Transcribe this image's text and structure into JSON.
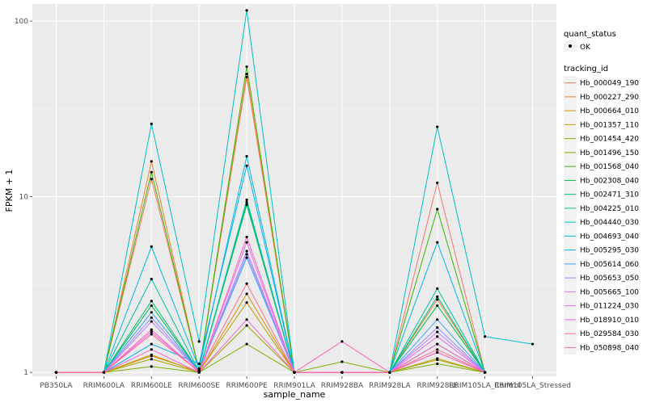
{
  "chart_data": {
    "type": "line",
    "title": "",
    "xlabel": "sample_name",
    "ylabel": "FPKM + 1",
    "y_scale": "log10",
    "ylim": [
      0.95,
      125
    ],
    "y_ticks": [
      1,
      10,
      100
    ],
    "y_tick_labels": [
      "1",
      "10",
      "100"
    ],
    "categories": [
      "PB350LA",
      "RRIM600LA",
      "RRIM600LE",
      "RRIM600SE",
      "RRIM600PE",
      "RRIM901LA",
      "RRIM928BA",
      "RRIM928LA",
      "RRIM928LE",
      "RRIM105LA_Control",
      "RRIM105LA_Stressed"
    ],
    "grid": true,
    "legend_position": "right",
    "legend_points": {
      "title": "quant_status",
      "entries": [
        "OK"
      ]
    },
    "legend_lines_title": "tracking_id",
    "series": [
      {
        "name": "Hb_000049_190",
        "color": "#F8766D",
        "values": [
          1,
          1,
          12.6,
          1.03,
          48,
          1.0,
          1.0,
          1.0,
          12.0,
          1.0,
          null
        ]
      },
      {
        "name": "Hb_000227_290",
        "color": "#EA8331",
        "values": [
          1,
          1,
          15.9,
          1.02,
          50,
          1.0,
          1.0,
          1.0,
          2.6,
          1.0,
          null
        ]
      },
      {
        "name": "Hb_000664_010",
        "color": "#D89000",
        "values": [
          1,
          1,
          1.26,
          1.0,
          2.8,
          1.0,
          1.0,
          1.0,
          1.3,
          1.0,
          null
        ]
      },
      {
        "name": "Hb_001357_110",
        "color": "#C09B00",
        "values": [
          1,
          1,
          1.24,
          1.01,
          2.5,
          1.0,
          1.0,
          1.0,
          1.2,
          1.0,
          null
        ]
      },
      {
        "name": "Hb_001454_420",
        "color": "#A3A500",
        "values": [
          1,
          1,
          1.19,
          1.0,
          1.85,
          1.0,
          1.0,
          1.0,
          1.18,
          1.0,
          null
        ]
      },
      {
        "name": "Hb_001496_150",
        "color": "#7CAE00",
        "values": [
          1,
          1,
          1.08,
          1.0,
          1.45,
          1.0,
          1.15,
          1.0,
          1.12,
          1.0,
          null
        ]
      },
      {
        "name": "Hb_001568_040",
        "color": "#39B600",
        "values": [
          1,
          1,
          13.8,
          1.02,
          55,
          1.0,
          1.0,
          1.0,
          8.5,
          1.0,
          null
        ]
      },
      {
        "name": "Hb_002308_040",
        "color": "#00BB4E",
        "values": [
          1,
          1,
          2.4,
          1.01,
          9.0,
          1.0,
          1.0,
          1.0,
          2.4,
          1.0,
          null
        ]
      },
      {
        "name": "Hb_002471_310",
        "color": "#00BF7D",
        "values": [
          1,
          1,
          2.55,
          1.01,
          9.3,
          1.0,
          1.0,
          1.0,
          2.7,
          1.0,
          null
        ]
      },
      {
        "name": "Hb_004225_010",
        "color": "#00C1A3",
        "values": [
          1,
          1,
          3.4,
          1.01,
          9.6,
          1.0,
          1.0,
          1.0,
          3.0,
          1.0,
          null
        ]
      },
      {
        "name": "Hb_004440_030",
        "color": "#00BFC4",
        "values": [
          1,
          1,
          26,
          1.5,
          115,
          1.0,
          1.0,
          1.0,
          25,
          1.6,
          1.45
        ]
      },
      {
        "name": "Hb_004693_040",
        "color": "#00BAE0",
        "values": [
          1,
          1,
          5.2,
          1.05,
          17,
          1.0,
          1.0,
          1.0,
          5.5,
          1.0,
          null
        ]
      },
      {
        "name": "Hb_005295_030",
        "color": "#00B0F6",
        "values": [
          1,
          1,
          1.45,
          1.12,
          15,
          1.0,
          1.0,
          1.0,
          1.45,
          1.0,
          null
        ]
      },
      {
        "name": "Hb_005614_060",
        "color": "#35A2FF",
        "values": [
          1,
          1,
          2.2,
          1.01,
          4.5,
          1.0,
          1.0,
          1.0,
          2.0,
          1.0,
          null
        ]
      },
      {
        "name": "Hb_005653_050",
        "color": "#9590FF",
        "values": [
          1,
          1,
          2.05,
          1.01,
          4.7,
          1.0,
          1.0,
          1.0,
          1.8,
          1.0,
          null
        ]
      },
      {
        "name": "Hb_005665_100",
        "color": "#C77CFF",
        "values": [
          1,
          1,
          1.95,
          1.01,
          4.9,
          1.0,
          1.0,
          1.0,
          1.7,
          1.0,
          null
        ]
      },
      {
        "name": "Hb_011224_030",
        "color": "#E76BF3",
        "values": [
          1,
          1,
          1.7,
          1.01,
          5.5,
          1.0,
          1.0,
          1.0,
          1.6,
          1.0,
          null
        ]
      },
      {
        "name": "Hb_018910_010",
        "color": "#FA62DB",
        "values": [
          1,
          1,
          1.35,
          1.0,
          2.0,
          1.0,
          1.0,
          1.0,
          1.3,
          1.0,
          null
        ]
      },
      {
        "name": "Hb_029584_030",
        "color": "#FF62BC",
        "values": [
          1,
          1,
          1.75,
          1.0,
          5.9,
          1.0,
          1.5,
          1.0,
          1.45,
          1.0,
          null
        ]
      },
      {
        "name": "Hb_050898_040",
        "color": "#FF6C91",
        "values": [
          1,
          1,
          1.65,
          1.01,
          3.2,
          1.0,
          1.0,
          1.0,
          1.35,
          1.0,
          null
        ]
      }
    ]
  }
}
